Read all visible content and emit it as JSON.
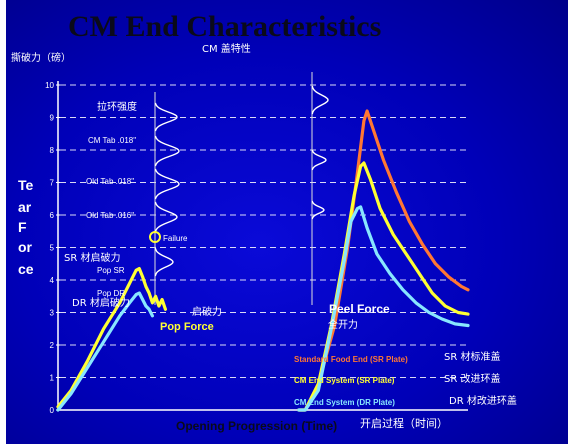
{
  "chart_data": {
    "type": "line",
    "title": "CM End Characteristics",
    "subtitle": "CM 盖特性",
    "ylabel_cn": "撕破力（磅）",
    "ylabel_letters": [
      "Te",
      "ar",
      "F",
      "or",
      "ce"
    ],
    "xlabel": "Opening Progression (Time)",
    "xlabel_cn": "开启过程（时间）",
    "ylim": [
      0,
      10
    ],
    "yticks": [
      "0",
      "1",
      "2",
      "3",
      "4",
      "5",
      "6",
      "7",
      "8",
      "9",
      "10"
    ],
    "grid": "dashed horizontal",
    "distribution_labels": [
      "拉环强度",
      "CM Tab .018\"",
      "Old Tab .018\"",
      "Old Tab .016\""
    ],
    "failure_label": "Failure",
    "pop_annotations": {
      "sr_cn": "SR 材启破力",
      "pop_sr": "Pop SR",
      "pop_dr": "Pop DR",
      "dr_cn": "DR 材启破力",
      "pop_cn": "启破力",
      "pop_force": "Pop Force"
    },
    "peel_annotations": {
      "peel_force": "Peel Force",
      "peel_cn": "全开力"
    },
    "series": [
      {
        "name": "Standard Food End (SR Plate)",
        "name_cn": "SR 材标准盖",
        "color": "#ff7733",
        "points": [
          [
            74,
            0
          ],
          [
            76,
            0
          ],
          [
            80,
            0.8
          ],
          [
            85,
            2.6
          ],
          [
            89,
            5
          ],
          [
            92,
            7.3
          ],
          [
            94,
            8.9
          ],
          [
            95,
            9.2
          ],
          [
            97,
            8.6
          ],
          [
            100,
            7.7
          ],
          [
            104,
            6.7
          ],
          [
            108,
            5.8
          ],
          [
            112,
            5.1
          ],
          [
            116,
            4.5
          ],
          [
            120,
            4.1
          ],
          [
            124,
            3.8
          ],
          [
            126,
            3.7
          ]
        ]
      },
      {
        "name": "CM End System (SR Plate)",
        "name_cn": "SR 改进环盖",
        "color": "#ffff33",
        "points": [
          [
            0,
            0.1
          ],
          [
            4,
            0.6
          ],
          [
            9,
            1.5
          ],
          [
            14,
            2.5
          ],
          [
            19,
            3.3
          ],
          [
            22,
            3.9
          ],
          [
            24,
            4.3
          ],
          [
            25,
            4.35
          ],
          [
            26,
            4.1
          ],
          [
            27,
            3.8
          ],
          [
            28,
            3.6
          ],
          [
            29,
            3.3
          ],
          [
            30,
            3.5
          ],
          [
            31,
            3.2
          ],
          [
            32,
            3.4
          ],
          [
            33,
            3.1
          ],
          [
            74,
            0
          ],
          [
            76,
            0
          ],
          [
            80,
            0.8
          ],
          [
            84,
            2.6
          ],
          [
            88,
            4.8
          ],
          [
            91,
            6.6
          ],
          [
            93,
            7.5
          ],
          [
            94,
            7.6
          ],
          [
            96,
            7.1
          ],
          [
            99,
            6.2
          ],
          [
            103,
            5.4
          ],
          [
            107,
            4.8
          ],
          [
            111,
            4.2
          ],
          [
            115,
            3.6
          ],
          [
            119,
            3.2
          ],
          [
            123,
            3
          ],
          [
            126,
            2.95
          ]
        ]
      },
      {
        "name": "CM End System (DR Plate)",
        "name_cn": "DR 材改进环盖",
        "color": "#88e6ff",
        "points": [
          [
            0,
            0
          ],
          [
            4,
            0.5
          ],
          [
            9,
            1.3
          ],
          [
            14,
            2.1
          ],
          [
            19,
            2.9
          ],
          [
            22,
            3.3
          ],
          [
            24,
            3.55
          ],
          [
            25,
            3.6
          ],
          [
            26,
            3.4
          ],
          [
            27,
            3.2
          ],
          [
            28,
            3.1
          ],
          [
            29,
            2.9
          ],
          [
            74,
            0
          ],
          [
            76,
            0
          ],
          [
            80,
            0.6
          ],
          [
            84,
            2.5
          ],
          [
            88,
            4.6
          ],
          [
            90,
            5.8
          ],
          [
            92,
            6.2
          ],
          [
            93,
            6.25
          ],
          [
            95,
            5.6
          ],
          [
            98,
            4.8
          ],
          [
            102,
            4.2
          ],
          [
            106,
            3.7
          ],
          [
            110,
            3.3
          ],
          [
            114,
            3
          ],
          [
            118,
            2.8
          ],
          [
            122,
            2.65
          ],
          [
            126,
            2.6
          ]
        ]
      }
    ]
  }
}
